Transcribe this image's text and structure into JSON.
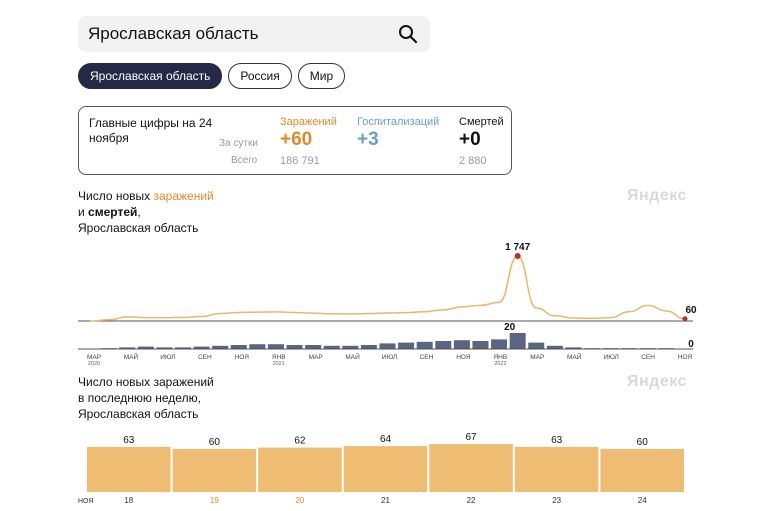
{
  "search": {
    "value": "Ярославская область"
  },
  "chips": [
    {
      "label": "Ярославская область",
      "active": true
    },
    {
      "label": "Россия",
      "active": false
    },
    {
      "label": "Мир",
      "active": false
    }
  ],
  "summary": {
    "title": "Главные цифры на 24 ноября",
    "row_day": "За сутки",
    "row_total": "Всего",
    "cases": {
      "label": "Заражений",
      "day": "+60",
      "total": "186 791",
      "color": "#e08a2a"
    },
    "hosp": {
      "label": "Госпитализаций",
      "day": "+3",
      "total": "",
      "color": "#6a9ec6"
    },
    "deaths": {
      "label": "Смертей",
      "day": "+0",
      "total": "2 880",
      "color": "#111111"
    }
  },
  "chart1": {
    "title_line1_prefix": "Число новых ",
    "title_line1_accent": "заражений",
    "title_line2_prefix": "и ",
    "title_line2_bold": "смертей",
    "title_line2_suffix": ",",
    "title_line3": "Ярославская область",
    "watermark": "Яндекс"
  },
  "chart2": {
    "title_line1": "Число новых заражений",
    "title_line2": "в последнюю неделю,",
    "title_line3": "Ярославская область",
    "watermark": "Яндекс"
  },
  "chart_data": [
    {
      "type": "line",
      "series": [
        {
          "color": "#e6b86a",
          "x": [
            "2020-03",
            "2020-04",
            "2020-05",
            "2020-06",
            "2020-07",
            "2020-08",
            "2020-09",
            "2020-10",
            "2020-11",
            "2020-12",
            "2021-01",
            "2021-02",
            "2021-03",
            "2021-04",
            "2021-05",
            "2021-06",
            "2021-07",
            "2021-08",
            "2021-09",
            "2021-10",
            "2021-11",
            "2021-12",
            "2022-01",
            "2022-02",
            "2022-03",
            "2022-04",
            "2022-05",
            "2022-06",
            "2022-07",
            "2022-08",
            "2022-09",
            "2022-10",
            "2022-11"
          ],
          "values": [
            0,
            30,
            110,
            90,
            90,
            95,
            120,
            200,
            230,
            240,
            245,
            230,
            210,
            195,
            190,
            200,
            215,
            225,
            250,
            300,
            380,
            420,
            500,
            1747,
            350,
            140,
            80,
            70,
            90,
            250,
            420,
            270,
            60
          ]
        },
        {
          "color": "#3d4a6b",
          "x": [
            "2020-03",
            "2020-04",
            "2020-05",
            "2020-06",
            "2020-07",
            "2020-08",
            "2020-09",
            "2020-10",
            "2020-11",
            "2020-12",
            "2021-01",
            "2021-02",
            "2021-03",
            "2021-04",
            "2021-05",
            "2021-06",
            "2021-07",
            "2021-08",
            "2021-09",
            "2021-10",
            "2021-11",
            "2021-12",
            "2022-01",
            "2022-02",
            "2022-03",
            "2022-04",
            "2022-05",
            "2022-06",
            "2022-07",
            "2022-08",
            "2022-09",
            "2022-10",
            "2022-11"
          ],
          "values": [
            0,
            1,
            2,
            3,
            2,
            2,
            3,
            4,
            5,
            6,
            6,
            5,
            5,
            4,
            4,
            5,
            7,
            8,
            9,
            10,
            11,
            10,
            12,
            20,
            8,
            4,
            2,
            1,
            1,
            1,
            1,
            1,
            0
          ]
        }
      ],
      "peak_label": "1 747",
      "last_label": "60",
      "deaths_peak_label": "20",
      "deaths_last_label": "0",
      "x_ticks": [
        {
          "label": "МАР",
          "sub": "2020"
        },
        {
          "label": "МАЙ",
          "sub": ""
        },
        {
          "label": "ИЮЛ",
          "sub": ""
        },
        {
          "label": "СЕН",
          "sub": ""
        },
        {
          "label": "НОЯ",
          "sub": ""
        },
        {
          "label": "ЯНВ",
          "sub": "2021"
        },
        {
          "label": "МАР",
          "sub": ""
        },
        {
          "label": "МАЙ",
          "sub": ""
        },
        {
          "label": "ИЮЛ",
          "sub": ""
        },
        {
          "label": "СЕН",
          "sub": ""
        },
        {
          "label": "НОЯ",
          "sub": ""
        },
        {
          "label": "ЯНВ",
          "sub": "2022"
        },
        {
          "label": "МАР",
          "sub": ""
        },
        {
          "label": "МАЙ",
          "sub": ""
        },
        {
          "label": "ИЮЛ",
          "sub": ""
        },
        {
          "label": "СЕН",
          "sub": ""
        },
        {
          "label": "НОЯ",
          "sub": ""
        }
      ]
    },
    {
      "type": "bar",
      "month_label": "НОЯ",
      "categories": [
        "18",
        "19",
        "20",
        "21",
        "22",
        "23",
        "24"
      ],
      "category_colors": [
        "#333333",
        "#e08a2a",
        "#e08a2a",
        "#333333",
        "#333333",
        "#333333",
        "#333333"
      ],
      "values": [
        63,
        60,
        62,
        64,
        67,
        63,
        60
      ],
      "bar_color": "#efbc73",
      "ylim": [
        0,
        67
      ]
    }
  ]
}
